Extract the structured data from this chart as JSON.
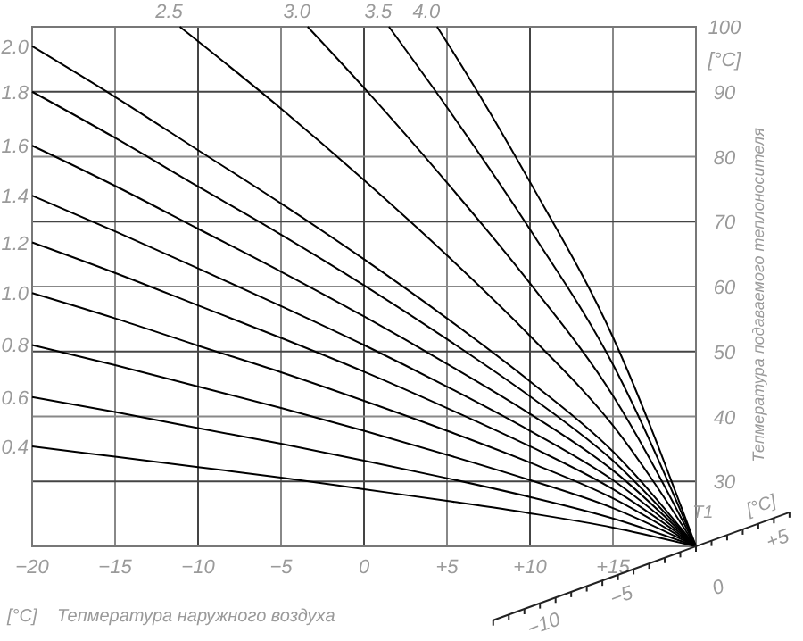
{
  "chart_data": {
    "type": "line",
    "xlabel": "Тепмература наружного воздуха",
    "ylabel": "Тепмература подаваемого теплоносителя",
    "xlim": [
      -20,
      20
    ],
    "ylim": [
      20,
      100
    ],
    "xticks": [
      {
        "value": -20,
        "label": "−20"
      },
      {
        "value": -15,
        "label": "−15"
      },
      {
        "value": -10,
        "label": "−10"
      },
      {
        "value": -5,
        "label": "−5"
      },
      {
        "value": 0,
        "label": "0"
      },
      {
        "value": 5,
        "label": "+5"
      },
      {
        "value": 10,
        "label": "+10"
      },
      {
        "value": 15,
        "label": "+15"
      },
      {
        "value": 20,
        "label": null
      }
    ],
    "yticks": [
      {
        "value": 20,
        "label": null
      },
      30,
      40,
      50,
      60,
      70,
      80,
      90,
      100
    ],
    "grid": true,
    "marker": "none",
    "line_style": "solid",
    "annotations": [
      "[°C]",
      "[°C]",
      "T1",
      "[°C]",
      "−10",
      "−5",
      "0",
      "+5"
    ],
    "series": [
      {
        "name": "0.4",
        "color": "#000000",
        "x": [
          -20,
          -15,
          -10,
          -5,
          0,
          5,
          10,
          15,
          20
        ],
        "values": [
          35.4,
          33.8,
          32.2,
          30.6,
          28.8,
          27,
          25.1,
          22.9,
          20
        ]
      },
      {
        "name": "0.6",
        "color": "#000000",
        "x": [
          -20,
          -15,
          -10,
          -5,
          0,
          5,
          10,
          15,
          20
        ],
        "values": [
          43,
          40.7,
          38.2,
          35.8,
          33.2,
          30.5,
          27.6,
          24.3,
          20
        ]
      },
      {
        "name": "0.8",
        "color": "#000000",
        "x": [
          -20,
          -15,
          -10,
          -5,
          0,
          5,
          10,
          15,
          20
        ],
        "values": [
          51,
          47.9,
          44.6,
          41.3,
          37.8,
          34.1,
          30.2,
          25.9,
          20
        ]
      },
      {
        "name": "1.0",
        "color": "#000000",
        "x": [
          -20,
          -15,
          -10,
          -5,
          0,
          5,
          10,
          15,
          20
        ],
        "values": [
          59,
          55.1,
          50.9,
          46.8,
          42.4,
          37.8,
          32.9,
          27.4,
          20
        ]
      },
      {
        "name": "1.2",
        "color": "#000000",
        "x": [
          -20,
          -15,
          -10,
          -5,
          0,
          5,
          10,
          15,
          20
        ],
        "values": [
          66.8,
          62.1,
          57.1,
          52.1,
          46.9,
          41.3,
          35.4,
          28.8,
          20
        ]
      },
      {
        "name": "1.4",
        "color": "#000000",
        "x": [
          -20,
          -15,
          -10,
          -5,
          0,
          5,
          10,
          15,
          20
        ],
        "values": [
          74,
          68.5,
          62.8,
          57,
          51,
          44.6,
          37.8,
          30.2,
          20
        ]
      },
      {
        "name": "1.6",
        "color": "#000000",
        "x": [
          -20,
          -15,
          -10,
          -5,
          0,
          5,
          10,
          15,
          20
        ],
        "values": [
          81.7,
          75.5,
          68.9,
          62.3,
          55.4,
          48.1,
          40.4,
          31.7,
          20
        ]
      },
      {
        "name": "1.8",
        "color": "#000000",
        "x": [
          -20,
          -15,
          -10,
          -5,
          0,
          5,
          10,
          15,
          20
        ],
        "values": [
          90,
          82.9,
          75.4,
          68,
          60.2,
          51.9,
          43.1,
          33.2,
          20
        ]
      },
      {
        "name": "2.0",
        "color": "#000000",
        "x": [
          -20,
          -15,
          -10,
          -5,
          0,
          5,
          10,
          15,
          20
        ],
        "values": [
          97,
          89.2,
          81,
          72.8,
          64.2,
          55.1,
          45.4,
          34.6,
          20
        ]
      },
      {
        "name": "2.5",
        "color": "#000000",
        "x": [
          -11.1,
          -5,
          0,
          5,
          10,
          15,
          20
        ],
        "values": [
          100,
          87.4,
          76.4,
          64.8,
          52.4,
          38.6,
          20
        ]
      },
      {
        "name": "3.0",
        "color": "#000000",
        "x": [
          -3.4,
          0,
          5,
          10,
          15,
          20
        ],
        "values": [
          100,
          90.6,
          76,
          60.5,
          43.2,
          20
        ]
      },
      {
        "name": "3.5",
        "color": "#000000",
        "x": [
          1.5,
          5,
          10,
          15,
          20
        ],
        "values": [
          100,
          87.6,
          68.8,
          48,
          20
        ]
      },
      {
        "name": "4.0",
        "color": "#000000",
        "x": [
          4.4,
          5,
          10,
          15,
          20
        ],
        "values": [
          100,
          97.6,
          76.1,
          52.2,
          20
        ]
      }
    ]
  }
}
